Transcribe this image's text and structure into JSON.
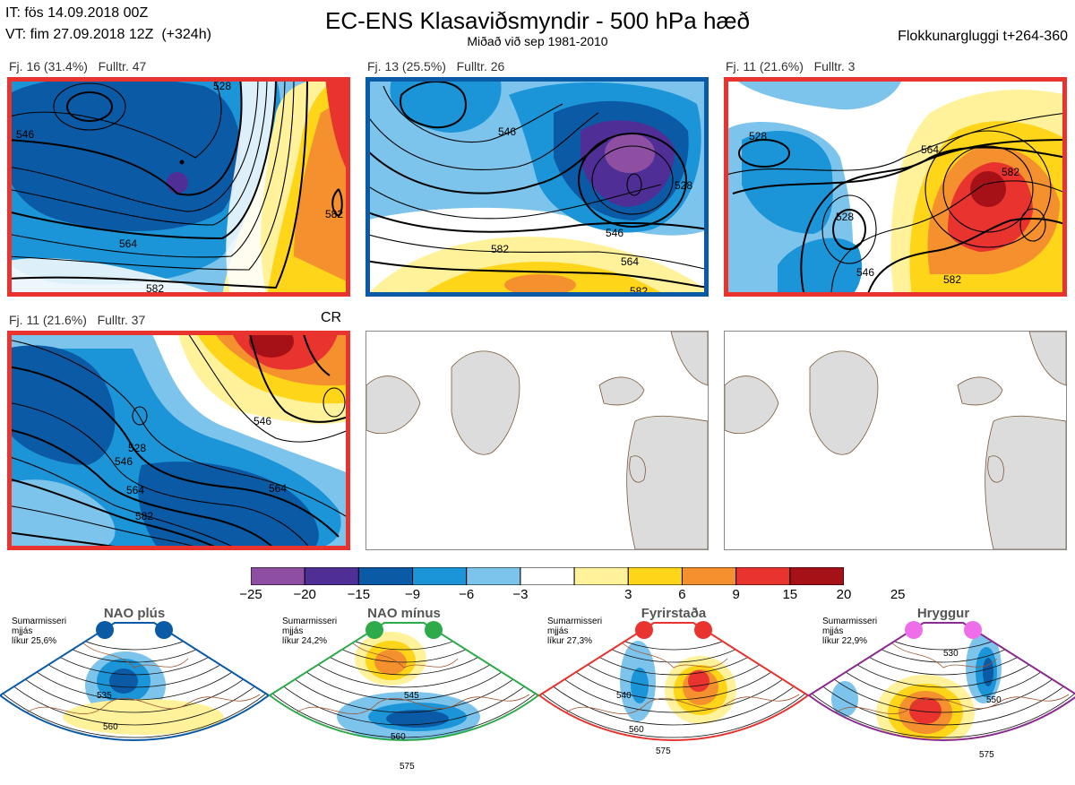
{
  "header": {
    "init_time": "IT: fös 14.09.2018 00Z",
    "valid_time": "VT: fim 27.09.2018 12Z  (+324h)",
    "title": "EC-ENS Klasaviðsmyndir - 500 hPa hæð",
    "subtitle": "Miðað við sep 1981-2010",
    "window": "Flokkunargluggi t+264-360"
  },
  "panels": [
    {
      "label": "Fj. 16 (31.4%)",
      "members": "Fulltr. 47",
      "border": "#e8332e",
      "contours": [
        "546",
        "564",
        "582",
        "582",
        "528"
      ]
    },
    {
      "label": "Fj. 13 (25.5%)",
      "members": "Fulltr. 26",
      "border": "#0b5aa6",
      "contours": [
        "546",
        "564",
        "582",
        "582",
        "528",
        "546"
      ]
    },
    {
      "label": "Fj. 11 (21.6%)",
      "members": "Fulltr. 3",
      "border": "#e8332e",
      "contours": [
        "528",
        "546",
        "564",
        "582",
        "582",
        "528"
      ]
    },
    {
      "label": "Fj. 11 (21.6%)",
      "members": "Fulltr. 37",
      "border": "#e8332e",
      "tag": "CR",
      "contours": [
        "528",
        "546",
        "564",
        "582",
        "564",
        "546"
      ]
    }
  ],
  "colorbar": {
    "ticks": [
      "−25",
      "−20",
      "−15",
      "−9",
      "−6",
      "−3",
      "3",
      "6",
      "9",
      "15",
      "20",
      "25"
    ],
    "colors": [
      "#8e4fa3",
      "#4f2f96",
      "#0b5aa6",
      "#1b95d8",
      "#7dc4ec",
      "#ffffff",
      "#fff29a",
      "#ffd51a",
      "#f5902e",
      "#e8332e",
      "#a51116"
    ]
  },
  "regimes": [
    {
      "name": "NAO plús",
      "season": "Sumarmisseri",
      "smooth": "mjjás",
      "prob": "líkur 25,6%",
      "color": "#0b5aa6",
      "dot": "#0b5aa6",
      "contours": [
        "535",
        "560"
      ]
    },
    {
      "name": "NAO mínus",
      "season": "Sumarmisseri",
      "smooth": "mjjás",
      "prob": "líkur 24,2%",
      "color": "#2daa4a",
      "dot": "#2daa4a",
      "contours": [
        "545",
        "560",
        "575"
      ]
    },
    {
      "name": "Fyrirstaða",
      "season": "Sumarmisseri",
      "smooth": "mjjás",
      "prob": "líkur 27,3%",
      "color": "#e8332e",
      "dot": "#e8332e",
      "contours": [
        "540",
        "560",
        "575"
      ]
    },
    {
      "name": "Hryggur",
      "season": "Sumarmisseri",
      "smooth": "mjjás",
      "prob": "líkur 22,9%",
      "color": "#8a2b8f",
      "dot": "#ee6ee9",
      "contours": [
        "530",
        "550",
        "575"
      ]
    }
  ],
  "chart_data": {
    "type": "heatmap",
    "variable": "500 hPa anomaly",
    "colorbar_bounds": [
      -25,
      -20,
      -15,
      -9,
      -6,
      -3,
      3,
      6,
      9,
      15,
      20,
      25
    ],
    "clusters": [
      {
        "percent": 31.4,
        "size": 16,
        "representative_member": 47
      },
      {
        "percent": 25.5,
        "size": 13,
        "representative_member": 26
      },
      {
        "percent": 21.6,
        "size": 11,
        "representative_member": 3
      },
      {
        "percent": 21.6,
        "size": 11,
        "representative_member": 37
      }
    ],
    "regime_probabilities": [
      25.6,
      24.2,
      27.3,
      22.9
    ]
  }
}
